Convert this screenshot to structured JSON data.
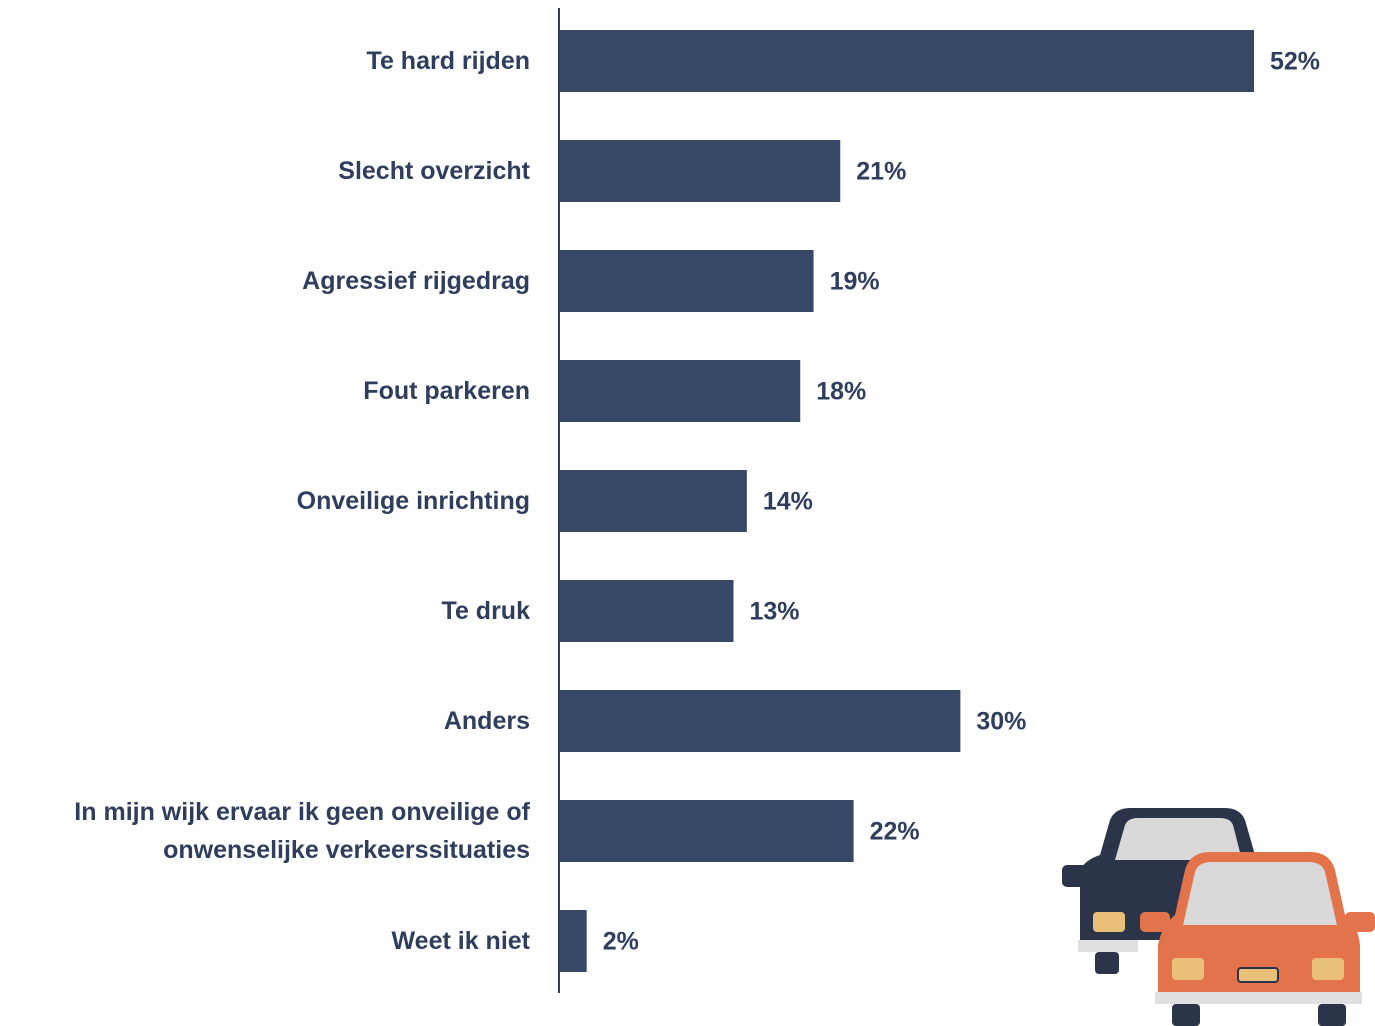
{
  "chart_data": {
    "type": "bar",
    "orientation": "horizontal",
    "categories": [
      "Te hard rijden",
      "Slecht overzicht",
      "Agressief rijgedrag",
      "Fout parkeren",
      "Onveilige inrichting",
      "Te druk",
      "Anders",
      "In mijn wijk ervaar ik geen onveilige of onwenselijke verkeerssituaties",
      "Weet ik niet"
    ],
    "values": [
      52,
      21,
      19,
      18,
      14,
      13,
      30,
      22,
      2
    ],
    "value_labels": [
      "52%",
      "21%",
      "19%",
      "18%",
      "14%",
      "13%",
      "30%",
      "22%",
      "2%"
    ],
    "color": "#374766"
  }
}
